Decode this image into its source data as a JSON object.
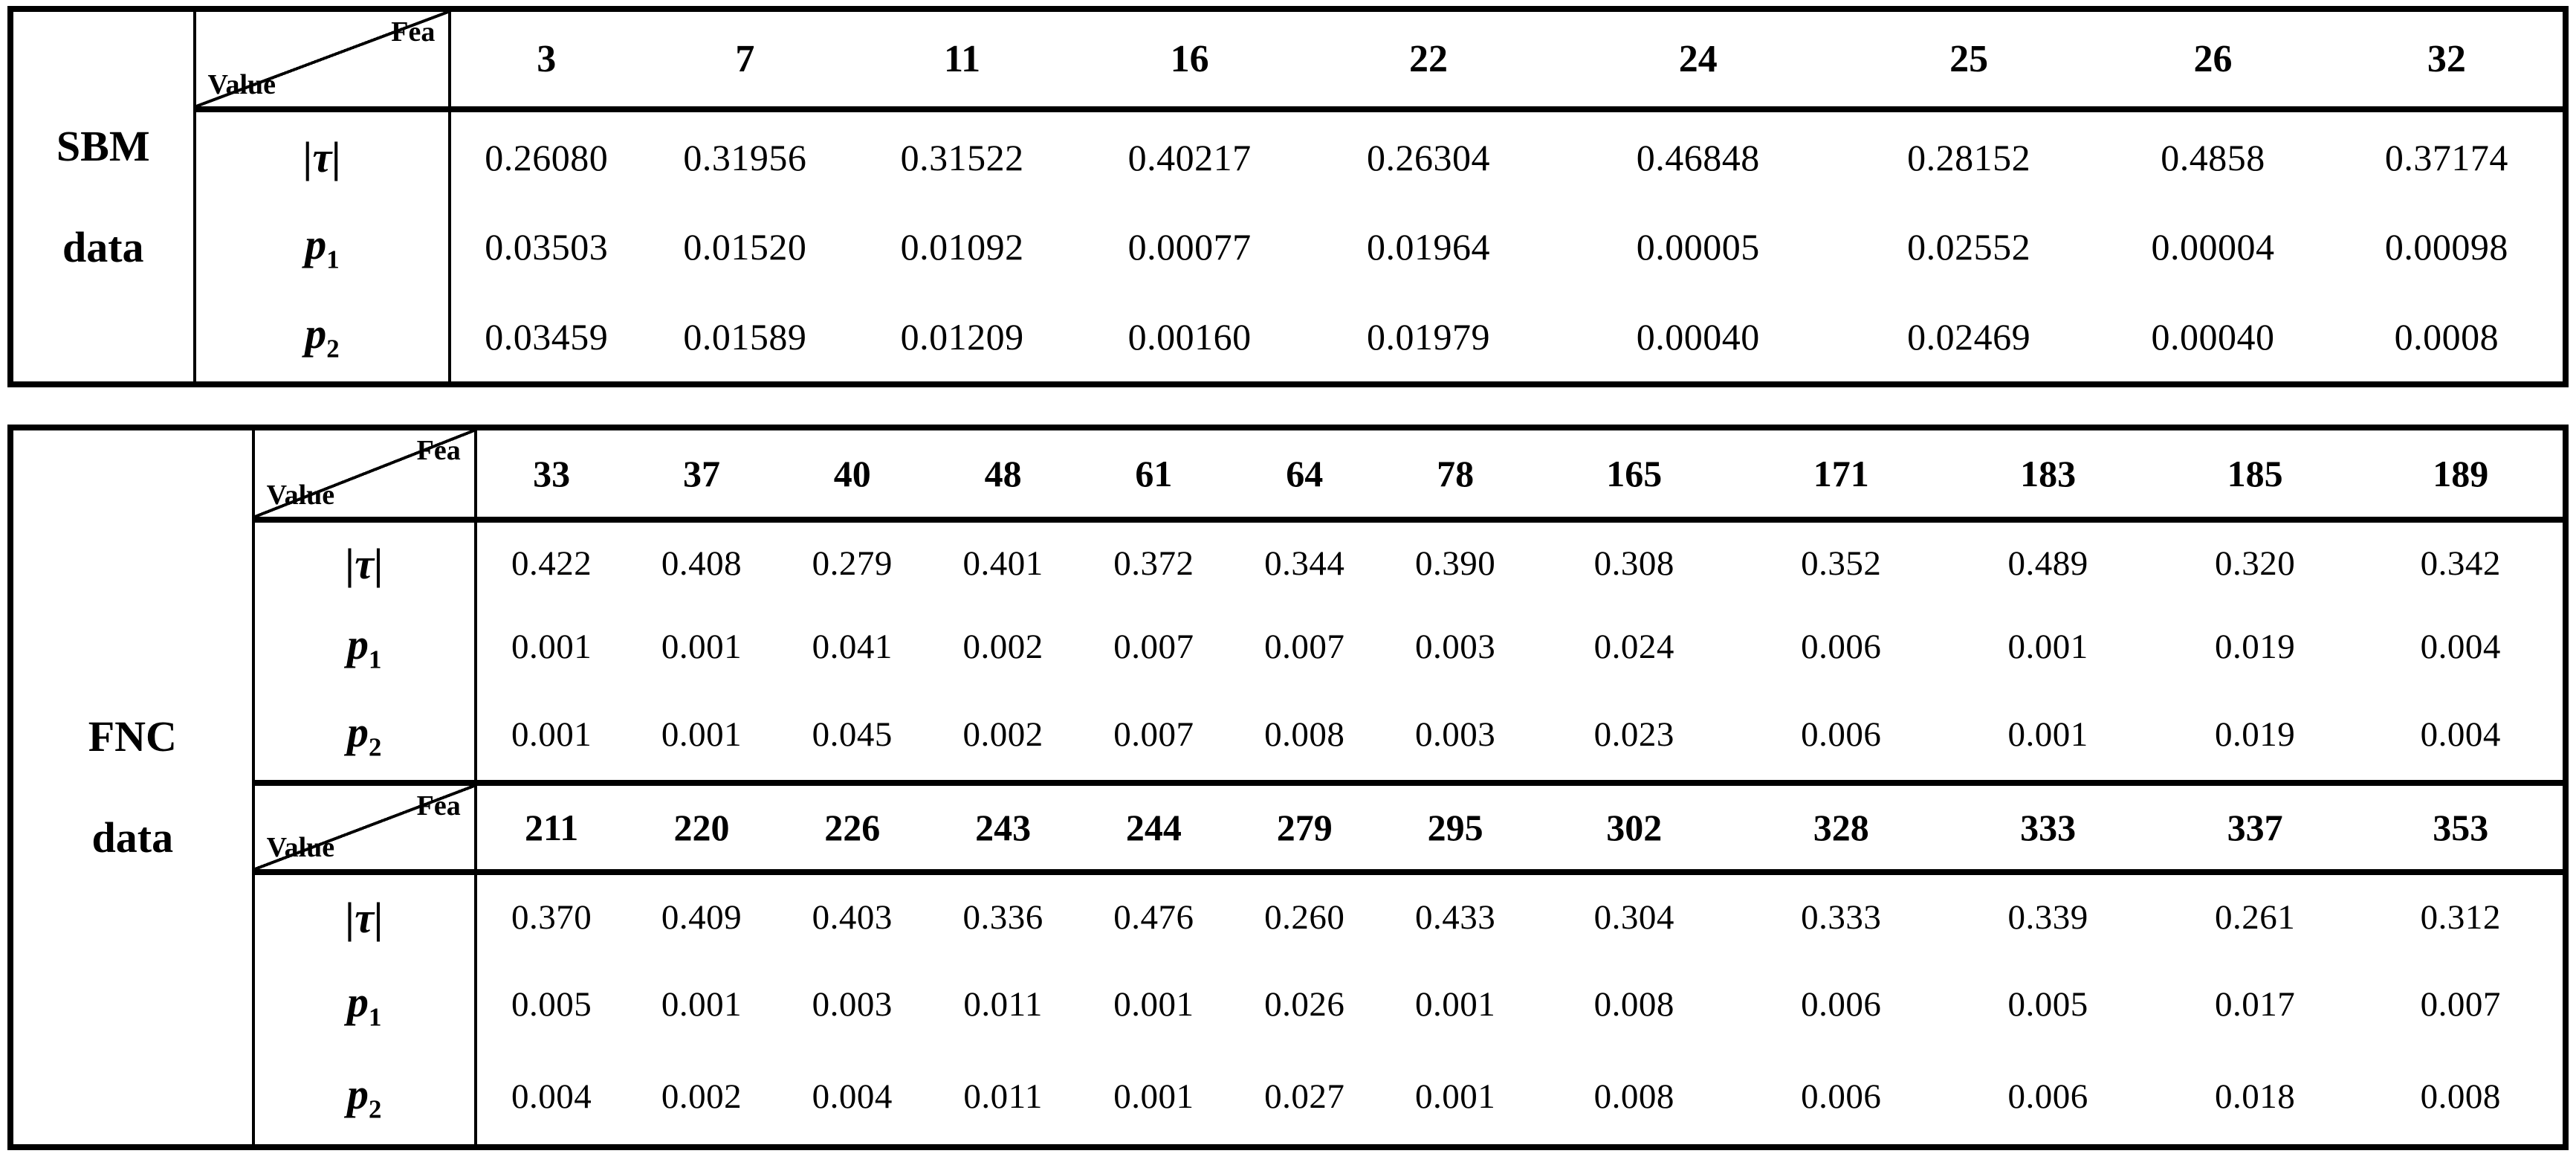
{
  "tables": [
    {
      "dataset_label_lines": [
        "SBM",
        "data"
      ],
      "sections": [
        {
          "corner": {
            "top": "Fea",
            "bottom": "Value"
          },
          "features": [
            "3",
            "7",
            "11",
            "16",
            "22",
            "24",
            "25",
            "26",
            "32"
          ],
          "rows": [
            {
              "label": "|τ|",
              "values": [
                "0.26080",
                "0.31956",
                "0.31522",
                "0.40217",
                "0.26304",
                "0.46848",
                "0.28152",
                "0.4858",
                "0.37174"
              ]
            },
            {
              "label": "p",
              "sub": "1",
              "values": [
                "0.03503",
                "0.01520",
                "0.01092",
                "0.00077",
                "0.01964",
                "0.00005",
                "0.02552",
                "0.00004",
                "0.00098"
              ]
            },
            {
              "label": "p",
              "sub": "2",
              "values": [
                "0.03459",
                "0.01589",
                "0.01209",
                "0.00160",
                "0.01979",
                "0.00040",
                "0.02469",
                "0.00040",
                "0.0008"
              ]
            }
          ]
        }
      ]
    },
    {
      "dataset_label_lines": [
        "FNC",
        "data"
      ],
      "sections": [
        {
          "corner": {
            "top": "Fea",
            "bottom": "Value"
          },
          "features": [
            "33",
            "37",
            "40",
            "48",
            "61",
            "64",
            "78",
            "165",
            "171",
            "183",
            "185",
            "189"
          ],
          "rows": [
            {
              "label": "|τ|",
              "values": [
                "0.422",
                "0.408",
                "0.279",
                "0.401",
                "0.372",
                "0.344",
                "0.390",
                "0.308",
                "0.352",
                "0.489",
                "0.320",
                "0.342"
              ]
            },
            {
              "label": "p",
              "sub": "1",
              "values": [
                "0.001",
                "0.001",
                "0.041",
                "0.002",
                "0.007",
                "0.007",
                "0.003",
                "0.024",
                "0.006",
                "0.001",
                "0.019",
                "0.004"
              ]
            },
            {
              "label": "p",
              "sub": "2",
              "values": [
                "0.001",
                "0.001",
                "0.045",
                "0.002",
                "0.007",
                "0.008",
                "0.003",
                "0.023",
                "0.006",
                "0.001",
                "0.019",
                "0.004"
              ]
            }
          ]
        },
        {
          "corner": {
            "top": "Fea",
            "bottom": "Value"
          },
          "features": [
            "211",
            "220",
            "226",
            "243",
            "244",
            "279",
            "295",
            "302",
            "328",
            "333",
            "337",
            "353"
          ],
          "rows": [
            {
              "label": "|τ|",
              "values": [
                "0.370",
                "0.409",
                "0.403",
                "0.336",
                "0.476",
                "0.260",
                "0.433",
                "0.304",
                "0.333",
                "0.339",
                "0.261",
                "0.312"
              ]
            },
            {
              "label": "p",
              "sub": "1",
              "values": [
                "0.005",
                "0.001",
                "0.003",
                "0.011",
                "0.001",
                "0.026",
                "0.001",
                "0.008",
                "0.006",
                "0.005",
                "0.017",
                "0.007"
              ]
            },
            {
              "label": "p",
              "sub": "2",
              "values": [
                "0.004",
                "0.002",
                "0.004",
                "0.011",
                "0.001",
                "0.027",
                "0.001",
                "0.008",
                "0.006",
                "0.006",
                "0.018",
                "0.008"
              ]
            }
          ]
        }
      ]
    }
  ]
}
